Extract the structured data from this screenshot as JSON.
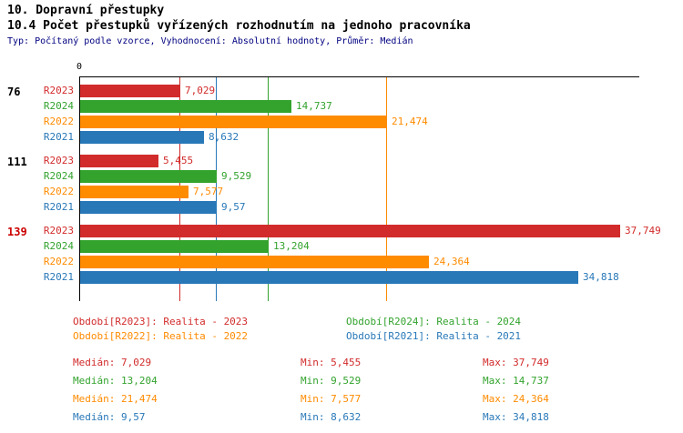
{
  "header": {
    "section_title": "10. Dopravní přestupky",
    "chart_title": "10.4 Počet přestupků vyřízených rozhodnutím na jednoho pracovníka",
    "subtitle": "Typ: Počítaný podle vzorce, Vyhodnocení: Absolutní hodnoty, Průměr: Medián"
  },
  "colors": {
    "R2023": "#d22b2b",
    "R2024": "#33a32e",
    "R2022": "#ff8b00",
    "R2021": "#2878b8",
    "subtitle": "#000080",
    "highlight": "#cc0000",
    "axis": "#000000"
  },
  "chart_data": {
    "type": "bar",
    "orientation": "horizontal",
    "value_axis_position": "top",
    "zero_label": "0",
    "xlim": [
      0,
      39
    ],
    "grid": false,
    "categories": [
      "76",
      "111",
      "139"
    ],
    "highlighted_category": "139",
    "series": [
      {
        "name": "R2023",
        "values": [
          7.029,
          5.455,
          37.749
        ],
        "value_labels": [
          "7,029",
          "5,455",
          "37,749"
        ]
      },
      {
        "name": "R2024",
        "values": [
          14.737,
          9.529,
          13.204
        ],
        "value_labels": [
          "14,737",
          "9,529",
          "13,204"
        ]
      },
      {
        "name": "R2022",
        "values": [
          21.474,
          7.577,
          24.364
        ],
        "value_labels": [
          "21,474",
          "7,577",
          "24,364"
        ]
      },
      {
        "name": "R2021",
        "values": [
          8.632,
          9.57,
          34.818
        ],
        "value_labels": [
          "8,632",
          "9,57",
          "34,818"
        ]
      }
    ],
    "median_lines": [
      {
        "series": "R2023",
        "value": 7.029
      },
      {
        "series": "R2024",
        "value": 13.204
      },
      {
        "series": "R2022",
        "value": 21.474
      },
      {
        "series": "R2021",
        "value": 9.57
      }
    ]
  },
  "legend": {
    "items": [
      {
        "series": "R2023",
        "text": "Období[R2023]: Realita - 2023"
      },
      {
        "series": "R2024",
        "text": "Období[R2024]: Realita - 2024"
      },
      {
        "series": "R2022",
        "text": "Období[R2022]: Realita - 2022"
      },
      {
        "series": "R2021",
        "text": "Období[R2021]: Realita - 2021"
      }
    ]
  },
  "stats": {
    "rows": [
      {
        "series": "R2023",
        "median": "Medián: 7,029",
        "min": "Min: 5,455",
        "max": "Max: 37,749"
      },
      {
        "series": "R2024",
        "median": "Medián: 13,204",
        "min": "Min: 9,529",
        "max": "Max: 14,737"
      },
      {
        "series": "R2022",
        "median": "Medián: 21,474",
        "min": "Min: 7,577",
        "max": "Max: 24,364"
      },
      {
        "series": "R2021",
        "median": "Medián: 9,57",
        "min": "Min: 8,632",
        "max": "Max: 34,818"
      }
    ]
  }
}
